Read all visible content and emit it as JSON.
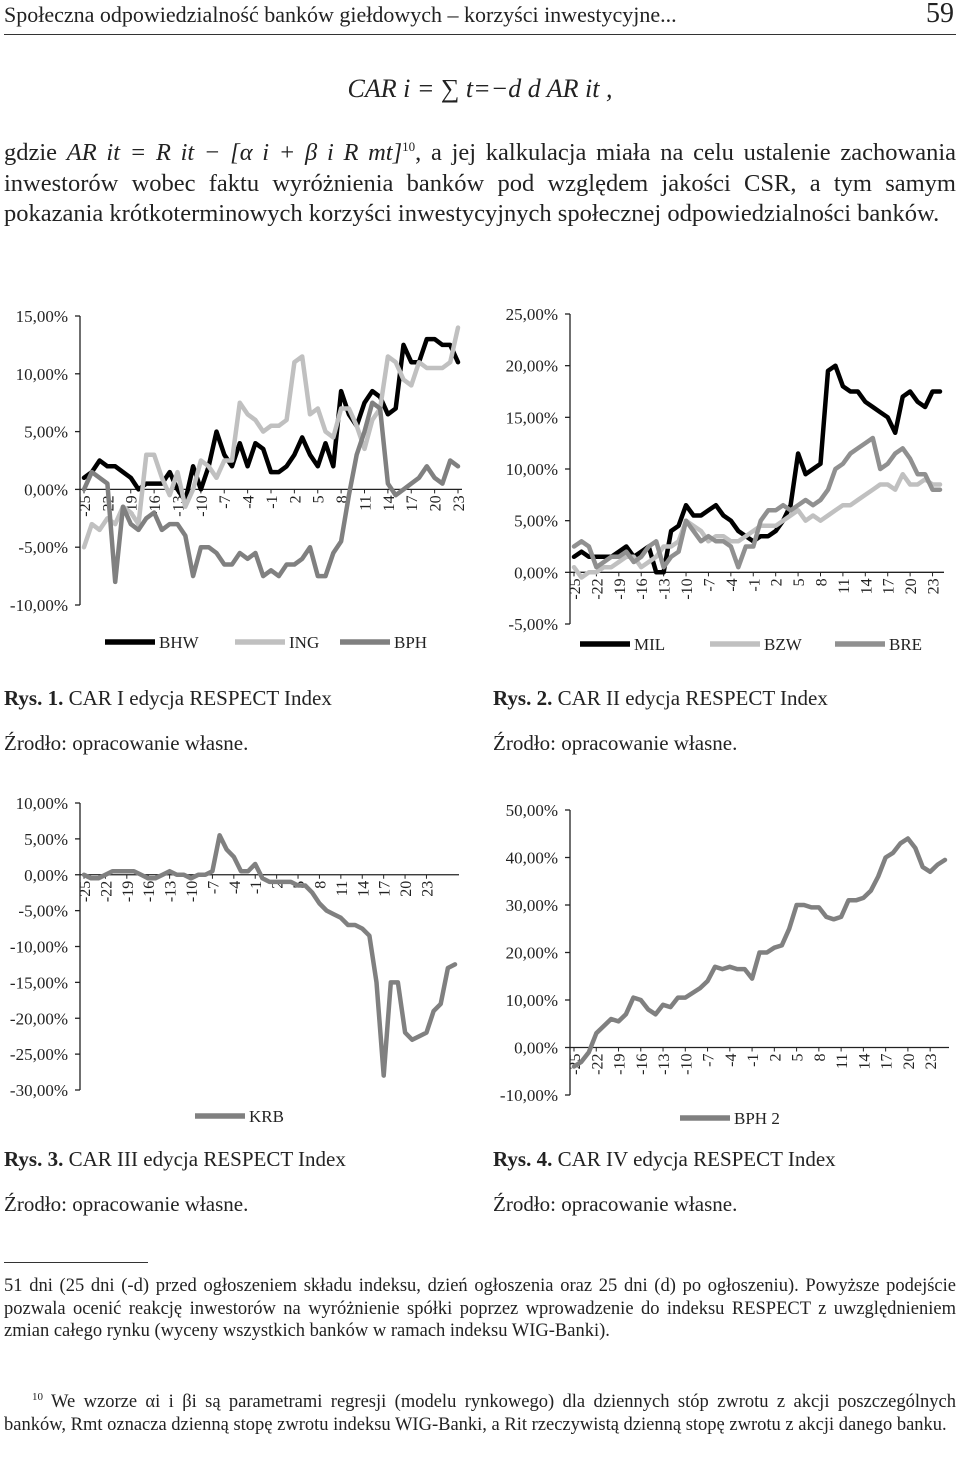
{
  "header": {
    "title": "Społeczna odpowiedzialność banków giełdowych – korzyści inwestycyjne...",
    "page_number": "59"
  },
  "formula": {
    "text": "CAR i = ∑ t=−d d AR it ,"
  },
  "paragraph": {
    "lead": "gdzie ",
    "formula": "AR it = R it − [α i + β i R mt]",
    "footnote_ref": "10",
    "text": ", a jej kalkulacja miała na celu ustalenie zachowania inwestorów wobec faktu wyróżnienia banków pod względem jakości CSR, a tym samym pokazania krótkoterminowych korzyści inwestycyjnych społecznej odpowiedzialności banków."
  },
  "figures": [
    {
      "caption_num": "Rys. 1.",
      "caption_text": " CAR I edycja RESPECT Index",
      "source": "Źrodło: opracowanie własne."
    },
    {
      "caption_num": "Rys. 2.",
      "caption_text": " CAR II edycja RESPECT Index",
      "source": "Źrodło: opracowanie własne."
    },
    {
      "caption_num": "Rys. 3.",
      "caption_text": " CAR III edycja RESPECT Index",
      "source": "Źrodło: opracowanie własne."
    },
    {
      "caption_num": "Rys. 4.",
      "caption_text": " CAR IV edycja RESPECT Index",
      "source": "Źrodło: opracowanie własne."
    }
  ],
  "footnotes": {
    "continuation": "51 dni (25 dni (-d) przed ogłoszeniem składu indeksu, dzień ogłoszenia oraz 25 dni (d) po ogłoszeniu). Powyższe podejście pozwala ocenić reakcję inwestorów na wyróżnienie spółki poprzez wprowadzenie do indeksu RESPECT z uwzględnieniem zmian całego rynku (wyceny wszystkich banków w ramach indeksu WIG-Banki).",
    "note10_num": "10",
    "note10_text": " We wzorze αi i βi są parametrami regresji (modelu rynkowego) dla dziennych stóp zwrotu z akcji poszczególnych banków, Rmt oznacza dzienną stopę zwrotu indeksu WIG-Banki, a Rit rzeczywistą dzienną stopę zwrotu z akcji danego banku."
  },
  "chart_data": [
    {
      "type": "line",
      "x_start": -25,
      "tick_labels": [
        "-25",
        "-22",
        "-19",
        "-16",
        "-13",
        "-10",
        "-7",
        "-4",
        "-1",
        "2",
        "5",
        "8",
        "11",
        "14",
        "17",
        "20",
        "23"
      ],
      "y_tick_labels": [
        "15,00%",
        "10,00%",
        "5,00%",
        "0,00%",
        "-5,00%",
        "-10,00%"
      ],
      "ylim": [
        -10,
        15
      ],
      "legend_position": "bottom",
      "series": [
        {
          "name": "BHW",
          "color": "#000000",
          "values": [
            1.0,
            1.5,
            2.5,
            2.0,
            2.0,
            1.5,
            1.0,
            0.0,
            0.5,
            0.5,
            0.5,
            1.5,
            0.0,
            -1.0,
            2.0,
            0.0,
            2.0,
            5.0,
            3.0,
            2.0,
            4.0,
            2.0,
            4.0,
            3.5,
            1.5,
            1.5,
            2.0,
            3.0,
            4.5,
            3.0,
            2.0,
            4.0,
            2.0,
            8.5,
            6.5,
            5.5,
            7.5,
            8.5,
            8.0,
            6.5,
            7.0,
            12.5,
            11.0,
            11.0,
            13.0,
            13.0,
            12.5,
            12.5,
            11.0
          ]
        },
        {
          "name": "ING",
          "color": "#c0c0c0",
          "values": [
            -5.0,
            -3.0,
            -3.5,
            -2.5,
            -3.0,
            -1.5,
            -2.0,
            -3.0,
            3.0,
            3.0,
            1.0,
            -0.5,
            1.5,
            -1.5,
            0.0,
            2.5,
            2.0,
            1.0,
            2.5,
            2.5,
            7.5,
            6.5,
            6.0,
            5.0,
            5.5,
            5.5,
            6.0,
            11.0,
            11.5,
            6.5,
            7.0,
            5.0,
            4.5,
            7.0,
            7.0,
            5.5,
            3.5,
            6.0,
            7.0,
            11.5,
            11.0,
            9.5,
            9.0,
            11.0,
            10.5,
            10.5,
            10.5,
            11.0,
            14.0
          ]
        },
        {
          "name": "BPH",
          "color": "#808080",
          "values": [
            0.0,
            1.5,
            1.0,
            0.5,
            -8.0,
            -1.5,
            -3.0,
            -3.5,
            -2.5,
            -2.0,
            -3.5,
            -3.0,
            -3.0,
            -4.0,
            -7.5,
            -5.0,
            -5.0,
            -5.5,
            -6.5,
            -6.5,
            -5.5,
            -6.0,
            -5.5,
            -7.5,
            -7.0,
            -7.5,
            -6.5,
            -6.5,
            -6.0,
            -5.0,
            -7.5,
            -7.5,
            -5.5,
            -4.5,
            -0.5,
            3.0,
            5.0,
            7.5,
            7.0,
            0.5,
            -0.5,
            0.0,
            0.5,
            1.0,
            2.0,
            1.0,
            0.5,
            2.5,
            2.0
          ]
        }
      ]
    },
    {
      "type": "line",
      "x_start": -25,
      "tick_labels": [
        "-25",
        "-22",
        "-19",
        "-16",
        "-13",
        "-10",
        "-7",
        "-4",
        "-1",
        "2",
        "5",
        "8",
        "11",
        "14",
        "17",
        "20",
        "23"
      ],
      "y_tick_labels": [
        "25,00%",
        "20,00%",
        "15,00%",
        "10,00%",
        "5,00%",
        "0,00%",
        "-5,00%"
      ],
      "ylim": [
        -5,
        25
      ],
      "legend_position": "bottom",
      "series": [
        {
          "name": "MIL",
          "color": "#000000",
          "values": [
            1.5,
            2.0,
            1.5,
            1.5,
            1.5,
            1.5,
            2.0,
            2.5,
            1.5,
            2.0,
            2.5,
            0.0,
            0.0,
            4.0,
            4.5,
            6.5,
            5.5,
            5.5,
            6.0,
            6.5,
            5.5,
            5.0,
            4.0,
            3.5,
            3.0,
            3.5,
            3.5,
            4.0,
            5.0,
            6.5,
            11.5,
            9.5,
            10.0,
            10.5,
            19.5,
            20.0,
            18.0,
            17.5,
            17.5,
            16.5,
            16.0,
            15.5,
            15.0,
            13.5,
            17.0,
            17.5,
            16.5,
            16.0,
            17.5,
            17.5
          ]
        },
        {
          "name": "BZW",
          "color": "#c0c0c0",
          "values": [
            0.5,
            -0.5,
            0.0,
            0.0,
            0.5,
            0.5,
            1.0,
            1.5,
            1.5,
            0.5,
            1.0,
            1.5,
            2.5,
            2.5,
            3.0,
            5.0,
            4.5,
            4.0,
            3.0,
            3.5,
            3.5,
            3.0,
            3.0,
            3.5,
            4.0,
            4.5,
            4.5,
            4.5,
            5.0,
            5.5,
            6.0,
            5.0,
            5.5,
            5.0,
            5.5,
            6.0,
            6.5,
            6.5,
            7.0,
            7.5,
            8.0,
            8.5,
            8.5,
            8.0,
            9.5,
            8.5,
            8.5,
            9.0,
            8.5,
            8.5
          ]
        },
        {
          "name": "BRE",
          "color": "#909090",
          "values": [
            2.5,
            3.0,
            2.5,
            0.5,
            1.0,
            1.5,
            1.5,
            2.0,
            1.0,
            1.5,
            2.5,
            3.0,
            0.5,
            1.5,
            2.0,
            5.0,
            4.0,
            3.0,
            3.5,
            3.0,
            3.0,
            2.5,
            0.5,
            2.5,
            2.5,
            5.0,
            6.0,
            6.0,
            6.5,
            6.0,
            6.5,
            7.0,
            6.5,
            7.0,
            8.0,
            10.0,
            10.5,
            11.5,
            12.0,
            12.5,
            13.0,
            10.0,
            10.5,
            11.5,
            12.0,
            11.0,
            9.5,
            9.5,
            8.0,
            8.0
          ]
        }
      ]
    },
    {
      "type": "line",
      "x_start": -25,
      "tick_labels": [
        "-25",
        "-22",
        "-19",
        "-16",
        "-13",
        "-10",
        "-7",
        "-4",
        "-1",
        "2",
        "5",
        "8",
        "11",
        "14",
        "17",
        "20",
        "23"
      ],
      "y_tick_labels": [
        "10,00%",
        "5,00%",
        "0,00%",
        "-5,00%",
        "-10,00%",
        "-15,00%",
        "-20,00%",
        "-25,00%",
        "-30,00%"
      ],
      "ylim": [
        -30,
        10
      ],
      "legend_position": "bottom",
      "series": [
        {
          "name": "KRB",
          "color": "#808080",
          "values": [
            0.0,
            -0.5,
            -0.5,
            0.0,
            0.5,
            0.5,
            0.5,
            0.5,
            0.0,
            -0.5,
            -0.5,
            0.0,
            0.5,
            0.0,
            0.0,
            -0.5,
            0.0,
            0.0,
            0.5,
            5.5,
            3.5,
            2.5,
            0.5,
            0.5,
            1.5,
            -0.5,
            -1.0,
            -1.0,
            -1.0,
            -1.0,
            -1.5,
            -1.5,
            -2.5,
            -4.0,
            -5.0,
            -5.5,
            -6.0,
            -7.0,
            -7.0,
            -7.5,
            -8.5,
            -15.0,
            -28.0,
            -15.0,
            -15.0,
            -22.0,
            -23.0,
            -22.5,
            -22.0,
            -19.0,
            -18.0,
            -13.0,
            -12.5
          ]
        }
      ]
    },
    {
      "type": "line",
      "x_start": -25,
      "tick_labels": [
        "-25",
        "-22",
        "-19",
        "-16",
        "-13",
        "-10",
        "-7",
        "-4",
        "-1",
        "2",
        "5",
        "8",
        "11",
        "14",
        "17",
        "20",
        "23"
      ],
      "y_tick_labels": [
        "50,00%",
        "40,00%",
        "30,00%",
        "20,00%",
        "10,00%",
        "0,00%",
        "-10,00%"
      ],
      "ylim": [
        -10,
        50
      ],
      "legend_position": "bottom",
      "series": [
        {
          "name": "BPH 2",
          "color": "#808080",
          "values": [
            -4.0,
            -3.0,
            -1.0,
            3.0,
            4.5,
            6.0,
            5.5,
            7.0,
            10.5,
            10.0,
            8.0,
            7.0,
            9.0,
            8.5,
            10.5,
            10.5,
            11.5,
            12.5,
            14.0,
            17.0,
            16.5,
            17.0,
            16.5,
            16.5,
            14.5,
            20.0,
            20.0,
            21.0,
            21.5,
            25.0,
            30.0,
            30.0,
            29.5,
            29.5,
            27.5,
            27.0,
            27.5,
            31.0,
            31.0,
            31.5,
            33.0,
            36.0,
            40.0,
            41.0,
            43.0,
            44.0,
            42.0,
            38.0,
            37.0,
            38.5,
            39.5
          ]
        }
      ]
    }
  ]
}
